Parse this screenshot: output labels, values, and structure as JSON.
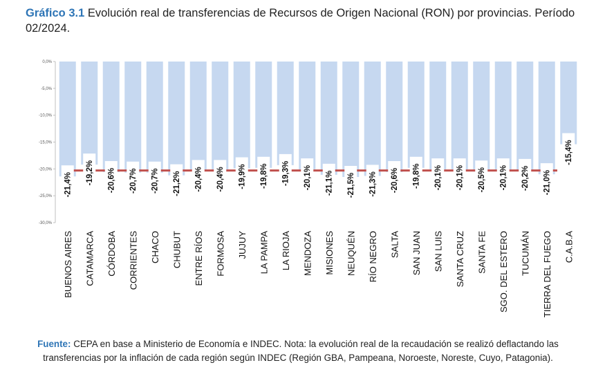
{
  "title": {
    "lead": "Gráfico 3.1",
    "text": "Evolución real de transferencias de Recursos de Origen Nacional (RON) por provincias. Período 02/2024."
  },
  "footnote": {
    "source_label": "Fuente:",
    "text": "CEPA en base a Ministerio de Economía e INDEC. Nota: la evolución real de la recaudación se realizó deflactando las transferencias por la inflación de cada región según INDEC (Región GBA, Pampeana, Noroeste, Noreste, Cuyo, Patagonia)."
  },
  "colors": {
    "bar": "#c6d8f0",
    "reference_line": "#c0504d",
    "axis": "#bfbfbf",
    "title_accent": "#2e75b6"
  },
  "chart_data": {
    "type": "bar",
    "categories": [
      "BUENOS AIRES",
      "CATAMARCA",
      "CÓRDOBA",
      "CORRIENTES",
      "CHACO",
      "CHUBUT",
      "ENTRE RÍOS",
      "FORMOSA",
      "JUJUY",
      "LA PAMPA",
      "LA RIOJA",
      "MENDOZA",
      "MISIONES",
      "NEUQUÉN",
      "RÍO NEGRO",
      "SALTA",
      "SAN JUAN",
      "SAN LUIS",
      "SANTA CRUZ",
      "SANTA FE",
      "SGO. DEL ESTERO",
      "TUCUMÁN",
      "TIERRA DEL FUEGO",
      "C.A.B.A"
    ],
    "values": [
      -21.4,
      -19.2,
      -20.6,
      -20.7,
      -20.7,
      -21.2,
      -20.4,
      -20.4,
      -19.9,
      -19.8,
      -19.3,
      -20.1,
      -21.1,
      -21.5,
      -21.3,
      -20.6,
      -19.8,
      -20.1,
      -20.1,
      -20.5,
      -20.1,
      -20.2,
      -21.0,
      -15.4
    ],
    "data_labels": [
      "-21,4%",
      "-19,2%",
      "-20,6%",
      "-20,7%",
      "-20,7%",
      "-21,2%",
      "-20,4%",
      "-20,4%",
      "-19,9%",
      "-19,8%",
      "-19,3%",
      "-20,1%",
      "-21,1%",
      "-21,5%",
      "-21,3%",
      "-20,6%",
      "-19,8%",
      "-20,1%",
      "-20,1%",
      "-20,5%",
      "-20,1%",
      "-20,2%",
      "-21,0%",
      "-15,4%"
    ],
    "reference_value": -20.3,
    "ylim": [
      -30,
      0
    ],
    "yticks": [
      0,
      -5,
      -10,
      -15,
      -20,
      -25,
      -30
    ],
    "ytick_labels": [
      "0,0%",
      "-5,0%",
      "-10,0%",
      "-15,0%",
      "-20,0%",
      "-25,0%",
      "-30,0%"
    ],
    "grid": false,
    "legend": "none"
  }
}
